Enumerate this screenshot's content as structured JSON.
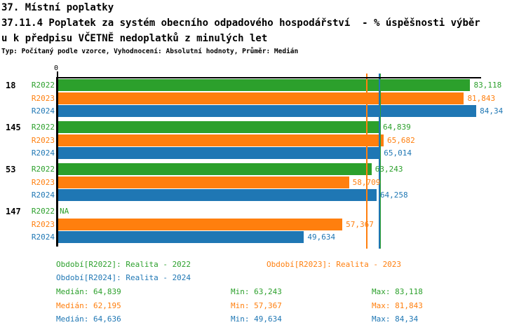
{
  "header": {
    "title": "37. Místní poplatky",
    "subtitle_line1": "37.11.4 Poplatek za systém obecního odpadového hospodářství  - % úspěšnosti výběr",
    "subtitle_line2": "u k předpisu VČETNĚ nedoplatků z minulých let",
    "meta": "Typ: Počítaný podle vzorce, Vyhodnocení: Absolutní hodnoty, Průměr: Medián"
  },
  "colors": {
    "R2022": "#2CA02C",
    "R2023": "#FF7F0E",
    "R2024": "#1F77B4",
    "axis": "#000000"
  },
  "chart_data": {
    "type": "bar",
    "orientation": "horizontal",
    "x_origin_label": "0",
    "xlim": [
      0,
      85.3
    ],
    "grid": false,
    "series_names": [
      "R2022",
      "R2023",
      "R2024"
    ],
    "groups": [
      {
        "label": "18",
        "bars": [
          {
            "series": "R2022",
            "value": 83.118,
            "display": "83,118"
          },
          {
            "series": "R2023",
            "value": 81.843,
            "display": "81,843"
          },
          {
            "series": "R2024",
            "value": 84.34,
            "display": "84,34"
          }
        ]
      },
      {
        "label": "145",
        "bars": [
          {
            "series": "R2022",
            "value": 64.839,
            "display": "64,839"
          },
          {
            "series": "R2023",
            "value": 65.682,
            "display": "65,682"
          },
          {
            "series": "R2024",
            "value": 65.014,
            "display": "65,014"
          }
        ]
      },
      {
        "label": "53",
        "bars": [
          {
            "series": "R2022",
            "value": 63.243,
            "display": "63,243"
          },
          {
            "series": "R2023",
            "value": 58.709,
            "display": "58,709"
          },
          {
            "series": "R2024",
            "value": 64.258,
            "display": "64,258"
          }
        ]
      },
      {
        "label": "147",
        "bars": [
          {
            "series": "R2022",
            "value": null,
            "display": "NA"
          },
          {
            "series": "R2023",
            "value": 57.367,
            "display": "57,367"
          },
          {
            "series": "R2024",
            "value": 49.634,
            "display": "49,634"
          }
        ]
      }
    ],
    "median_lines": [
      {
        "series": "R2022",
        "value": 64.839
      },
      {
        "series": "R2023",
        "value": 62.195
      },
      {
        "series": "R2024",
        "value": 64.636
      }
    ]
  },
  "legend": {
    "r2022": "Období[R2022]: Realita - 2022",
    "r2023": "Období[R2023]: Realita - 2023",
    "r2024": "Období[R2024]: Realita - 2024"
  },
  "stats": [
    {
      "series": "R2022",
      "median": "Medián: 64,839",
      "min": "Min: 63,243",
      "max": "Max: 83,118"
    },
    {
      "series": "R2023",
      "median": "Medián: 62,195",
      "min": "Min: 57,367",
      "max": "Max: 81,843"
    },
    {
      "series": "R2024",
      "median": "Medián: 64,636",
      "min": "Min: 49,634",
      "max": "Max: 84,34"
    }
  ]
}
